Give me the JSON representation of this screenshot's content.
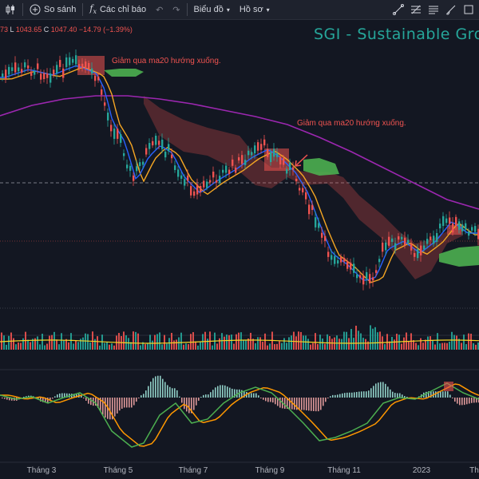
{
  "toolbar": {
    "compare_label": "So sánh",
    "indicators_label": "Các chỉ báo",
    "chart_type_label": "Biểu đồ",
    "profile_label": "Hồ sơ"
  },
  "ohlc": {
    "open_tail": "73",
    "low_key": "L",
    "low_value": "1043.65",
    "close_key": "C",
    "close_value": "1047.40",
    "change": "−14.79 (−1.39%)"
  },
  "chart_title": "SGI  - Sustainable Gro",
  "annotations": [
    "Giảm qua ma20 hướng xuống.",
    "Giảm qua ma20 hướng xuống."
  ],
  "x_axis_labels": [
    "Tháng 3",
    "Tháng 5",
    "Tháng 7",
    "Tháng 9",
    "Tháng 11",
    "2023",
    "Th"
  ],
  "colors": {
    "background": "#131722",
    "up": "#26a69a",
    "down": "#ef5350",
    "ma_long": "#9c27b0",
    "ma20": "#f5a623",
    "ma_fast": "#2962ff",
    "macd": "#4caf50",
    "signal": "#ff9800",
    "title": "#26a69a"
  },
  "icons": [
    "candles-icon",
    "compare-plus-icon",
    "fx-indicators-icon",
    "undo-icon",
    "redo-icon",
    "trend-line-icon",
    "fib-icon",
    "text-icon",
    "brush-icon",
    "rectangle-icon"
  ]
}
